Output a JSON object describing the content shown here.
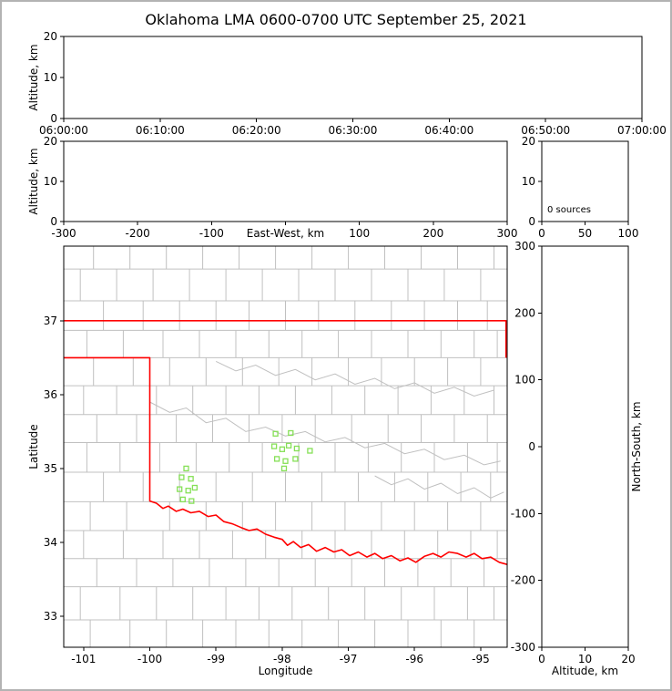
{
  "title": "Oklahoma LMA 0600-0700 UTC September 25, 2021",
  "colors": {
    "axis": "#000000",
    "state_border": "#ff0000",
    "county_line": "#c0c0c0",
    "river_line": "#c0c0c0",
    "station": "#86e057"
  },
  "chart_data": [
    {
      "id": "time_height",
      "type": "scatter",
      "ylabel": "Altitude, km",
      "xlim": [
        0,
        6
      ],
      "ylim": [
        0,
        20
      ],
      "xticks": [
        {
          "v": 0,
          "t": "06:00:00"
        },
        {
          "v": 1,
          "t": "06:10:00"
        },
        {
          "v": 2,
          "t": "06:20:00"
        },
        {
          "v": 3,
          "t": "06:30:00"
        },
        {
          "v": 4,
          "t": "06:40:00"
        },
        {
          "v": 5,
          "t": "06:50:00"
        },
        {
          "v": 6,
          "t": "07:00:00"
        }
      ],
      "yticks": [
        {
          "v": 0,
          "t": "0"
        },
        {
          "v": 10,
          "t": "10"
        },
        {
          "v": 20,
          "t": "20"
        }
      ],
      "points": []
    },
    {
      "id": "ew_height",
      "type": "scatter",
      "xlabel": "East-West, km",
      "ylabel": "Altitude, km",
      "xlim": [
        -300,
        300
      ],
      "ylim": [
        0,
        20
      ],
      "xticks": [
        {
          "v": -300,
          "t": "-300"
        },
        {
          "v": -200,
          "t": "-200"
        },
        {
          "v": -100,
          "t": "-100"
        },
        {
          "v": 0,
          "t": ""
        },
        {
          "v": 100,
          "t": "100"
        },
        {
          "v": 200,
          "t": "200"
        },
        {
          "v": 300,
          "t": "300"
        }
      ],
      "yticks": [
        {
          "v": 0,
          "t": "0"
        },
        {
          "v": 10,
          "t": "10"
        },
        {
          "v": 20,
          "t": "20"
        }
      ],
      "points": []
    },
    {
      "id": "alt_histogram",
      "type": "bar",
      "annotation": "0 sources",
      "xlim": [
        0,
        100
      ],
      "ylim": [
        0,
        20
      ],
      "xticks": [
        {
          "v": 0,
          "t": "0"
        },
        {
          "v": 50,
          "t": "50"
        },
        {
          "v": 100,
          "t": "100"
        }
      ],
      "yticks": [
        {
          "v": 0,
          "t": "0"
        },
        {
          "v": 10,
          "t": "10"
        },
        {
          "v": 20,
          "t": "20"
        }
      ],
      "values": []
    },
    {
      "id": "plan_map",
      "type": "scatter",
      "xlabel": "Longitude",
      "ylabel": "Latitude",
      "xlim": [
        -101.3,
        -94.6
      ],
      "ylim": [
        32.58,
        38.01
      ],
      "xticks": [
        {
          "v": -101,
          "t": "-101"
        },
        {
          "v": -100,
          "t": "-100"
        },
        {
          "v": -99,
          "t": "-99"
        },
        {
          "v": -98,
          "t": "-98"
        },
        {
          "v": -97,
          "t": "-97"
        },
        {
          "v": -96,
          "t": "-96"
        },
        {
          "v": -95,
          "t": "-95"
        }
      ],
      "yticks": [
        {
          "v": 33,
          "t": "33"
        },
        {
          "v": 34,
          "t": "34"
        },
        {
          "v": 35,
          "t": "35"
        },
        {
          "v": 36,
          "t": "36"
        },
        {
          "v": 37,
          "t": "37"
        }
      ],
      "stations": [
        [
          -98.1,
          35.47
        ],
        [
          -97.87,
          35.48
        ],
        [
          -98.12,
          35.3
        ],
        [
          -98.0,
          35.26
        ],
        [
          -97.9,
          35.31
        ],
        [
          -97.78,
          35.27
        ],
        [
          -98.08,
          35.13
        ],
        [
          -97.95,
          35.1
        ],
        [
          -97.8,
          35.13
        ],
        [
          -97.97,
          35.0
        ],
        [
          -97.58,
          35.24
        ],
        [
          -99.45,
          35.0
        ],
        [
          -99.52,
          34.88
        ],
        [
          -99.38,
          34.86
        ],
        [
          -99.55,
          34.72
        ],
        [
          -99.42,
          34.7
        ],
        [
          -99.32,
          34.74
        ],
        [
          -99.5,
          34.58
        ],
        [
          -99.37,
          34.56
        ]
      ],
      "state_border": [
        [
          [
            -101.3,
            37.0
          ],
          [
            -94.618,
            37.0
          ],
          [
            -94.618,
            36.5
          ]
        ],
        [
          [
            -101.3,
            36.5
          ],
          [
            -100.0,
            36.5
          ],
          [
            -100.0,
            34.56
          ],
          [
            -99.9,
            34.53
          ],
          [
            -99.8,
            34.46
          ],
          [
            -99.72,
            34.49
          ],
          [
            -99.6,
            34.42
          ],
          [
            -99.5,
            34.45
          ],
          [
            -99.38,
            34.4
          ],
          [
            -99.25,
            34.42
          ],
          [
            -99.12,
            34.35
          ],
          [
            -99.0,
            34.37
          ],
          [
            -98.88,
            34.28
          ],
          [
            -98.75,
            34.25
          ],
          [
            -98.62,
            34.2
          ],
          [
            -98.5,
            34.16
          ],
          [
            -98.38,
            34.18
          ],
          [
            -98.25,
            34.11
          ],
          [
            -98.12,
            34.07
          ],
          [
            -98.0,
            34.04
          ],
          [
            -97.92,
            33.96
          ],
          [
            -97.83,
            34.01
          ],
          [
            -97.72,
            33.93
          ],
          [
            -97.6,
            33.97
          ],
          [
            -97.48,
            33.88
          ],
          [
            -97.35,
            33.93
          ],
          [
            -97.22,
            33.87
          ],
          [
            -97.1,
            33.9
          ],
          [
            -96.98,
            33.82
          ],
          [
            -96.85,
            33.87
          ],
          [
            -96.72,
            33.8
          ],
          [
            -96.6,
            33.85
          ],
          [
            -96.48,
            33.78
          ],
          [
            -96.35,
            33.82
          ],
          [
            -96.22,
            33.75
          ],
          [
            -96.1,
            33.79
          ],
          [
            -95.98,
            33.73
          ],
          [
            -95.85,
            33.81
          ],
          [
            -95.72,
            33.85
          ],
          [
            -95.6,
            33.8
          ],
          [
            -95.48,
            33.87
          ],
          [
            -95.35,
            33.85
          ],
          [
            -95.22,
            33.8
          ],
          [
            -95.1,
            33.85
          ],
          [
            -94.98,
            33.78
          ],
          [
            -94.85,
            33.8
          ],
          [
            -94.72,
            33.73
          ],
          [
            -94.6,
            33.7
          ]
        ]
      ],
      "county_rows": [
        {
          "a": 32.58,
          "b": 32.95,
          "d": [
            -100.9,
            -100.3,
            -99.75,
            -99.2,
            -98.7,
            -98.2,
            -97.7,
            -97.15,
            -96.6,
            -96.1,
            -95.6,
            -95.1
          ]
        },
        {
          "a": 32.95,
          "b": 33.4,
          "d": [
            -101.05,
            -100.45,
            -99.9,
            -99.35,
            -98.85,
            -98.35,
            -97.85,
            -97.3,
            -96.75,
            -96.2,
            -95.7,
            -95.2,
            -94.8
          ]
        },
        {
          "a": 33.4,
          "b": 33.78,
          "d": [
            -100.8,
            -100.2,
            -99.65,
            -99.1,
            -98.55,
            -98.05,
            -97.5,
            -96.95,
            -96.45,
            -95.95,
            -95.45,
            -94.95
          ]
        },
        {
          "a": 33.78,
          "b": 34.16,
          "d": [
            -101.0,
            -100.4,
            -99.8,
            -99.25,
            -98.75,
            -98.25,
            -97.7,
            -97.2,
            -96.65,
            -96.15,
            -95.65,
            -95.15,
            -94.75
          ]
        },
        {
          "a": 34.16,
          "b": 34.55,
          "d": [
            -100.9,
            -100.35,
            -99.7,
            -99.15,
            -98.6,
            -98.1,
            -97.55,
            -97.05,
            -96.5,
            -96.0,
            -95.5,
            -95.0
          ]
        },
        {
          "a": 34.55,
          "b": 34.95,
          "d": [
            -100.7,
            -100.1,
            -99.55,
            -99.0,
            -98.45,
            -97.95,
            -97.4,
            -96.85,
            -96.3,
            -95.8,
            -95.3,
            -94.85
          ]
        },
        {
          "a": 34.95,
          "b": 35.35,
          "d": [
            -100.95,
            -100.45,
            -99.85,
            -99.3,
            -98.8,
            -98.3,
            -97.75,
            -97.2,
            -96.7,
            -96.2,
            -95.7,
            -95.2,
            -94.75
          ]
        },
        {
          "a": 35.35,
          "b": 35.73,
          "d": [
            -100.8,
            -100.2,
            -99.6,
            -99.05,
            -98.5,
            -98.0,
            -97.5,
            -96.95,
            -96.4,
            -95.9,
            -95.4,
            -94.9
          ]
        },
        {
          "a": 35.73,
          "b": 36.12,
          "d": [
            -101.0,
            -100.5,
            -99.9,
            -99.35,
            -98.85,
            -98.35,
            -97.8,
            -97.25,
            -96.75,
            -96.25,
            -95.75,
            -95.25,
            -94.8
          ]
        },
        {
          "a": 36.12,
          "b": 36.5,
          "d": [
            -100.85,
            -100.25,
            -99.7,
            -99.15,
            -98.6,
            -98.05,
            -97.55,
            -97.0,
            -96.5,
            -96.0,
            -95.5,
            -95.0
          ]
        },
        {
          "a": 36.5,
          "b": 36.87,
          "d": [
            -100.95,
            -100.4,
            -99.8,
            -99.25,
            -98.7,
            -98.2,
            -97.7,
            -97.15,
            -96.65,
            -96.1,
            -95.6,
            -95.1,
            -94.75
          ]
        },
        {
          "a": 36.87,
          "b": 37.27,
          "d": [
            -100.7,
            -100.1,
            -99.55,
            -99.0,
            -98.5,
            -97.95,
            -97.45,
            -96.9,
            -96.35,
            -95.85,
            -95.35,
            -94.9
          ]
        },
        {
          "a": 37.27,
          "b": 37.7,
          "d": [
            -101.05,
            -100.5,
            -99.95,
            -99.4,
            -98.85,
            -98.3,
            -97.75,
            -97.2,
            -96.65,
            -96.1,
            -95.55,
            -95.0
          ]
        },
        {
          "a": 37.7,
          "b": 38.01,
          "d": [
            -100.85,
            -100.3,
            -99.75,
            -99.2,
            -98.65,
            -98.1,
            -97.55,
            -97.0,
            -96.45,
            -95.9,
            -95.35,
            -94.8
          ]
        }
      ],
      "rivers": [
        [
          [
            -100.0,
            35.9
          ],
          [
            -99.7,
            35.76
          ],
          [
            -99.45,
            35.82
          ],
          [
            -99.15,
            35.62
          ],
          [
            -98.85,
            35.68
          ],
          [
            -98.55,
            35.5
          ],
          [
            -98.25,
            35.56
          ],
          [
            -97.95,
            35.44
          ],
          [
            -97.65,
            35.5
          ],
          [
            -97.35,
            35.36
          ],
          [
            -97.05,
            35.42
          ],
          [
            -96.75,
            35.28
          ],
          [
            -96.45,
            35.34
          ],
          [
            -96.15,
            35.2
          ],
          [
            -95.85,
            35.26
          ],
          [
            -95.55,
            35.12
          ],
          [
            -95.25,
            35.18
          ],
          [
            -94.95,
            35.05
          ],
          [
            -94.7,
            35.1
          ]
        ],
        [
          [
            -99.0,
            36.45
          ],
          [
            -98.7,
            36.32
          ],
          [
            -98.4,
            36.4
          ],
          [
            -98.1,
            36.26
          ],
          [
            -97.8,
            36.34
          ],
          [
            -97.5,
            36.2
          ],
          [
            -97.2,
            36.28
          ],
          [
            -96.9,
            36.14
          ],
          [
            -96.6,
            36.22
          ],
          [
            -96.3,
            36.08
          ],
          [
            -96.0,
            36.16
          ],
          [
            -95.7,
            36.02
          ],
          [
            -95.4,
            36.1
          ],
          [
            -95.1,
            35.98
          ],
          [
            -94.8,
            36.06
          ]
        ],
        [
          [
            -96.6,
            34.9
          ],
          [
            -96.35,
            34.78
          ],
          [
            -96.1,
            34.86
          ],
          [
            -95.85,
            34.72
          ],
          [
            -95.6,
            34.8
          ],
          [
            -95.35,
            34.66
          ],
          [
            -95.1,
            34.74
          ],
          [
            -94.85,
            34.6
          ],
          [
            -94.65,
            34.68
          ]
        ]
      ],
      "points": []
    },
    {
      "id": "ns_height",
      "type": "scatter",
      "xlabel": "Altitude, km",
      "ylabel": "North-South, km",
      "xlim": [
        0,
        20
      ],
      "ylim": [
        -300,
        300
      ],
      "xticks": [
        {
          "v": 0,
          "t": "0"
        },
        {
          "v": 10,
          "t": "10"
        },
        {
          "v": 20,
          "t": "20"
        }
      ],
      "yticks": [
        {
          "v": 300,
          "t": "300"
        },
        {
          "v": 200,
          "t": "200"
        },
        {
          "v": 100,
          "t": "100"
        },
        {
          "v": 0,
          "t": "0"
        },
        {
          "v": -100,
          "t": "-100"
        },
        {
          "v": -200,
          "t": "-200"
        },
        {
          "v": -300,
          "t": "-300"
        }
      ],
      "points": []
    }
  ]
}
